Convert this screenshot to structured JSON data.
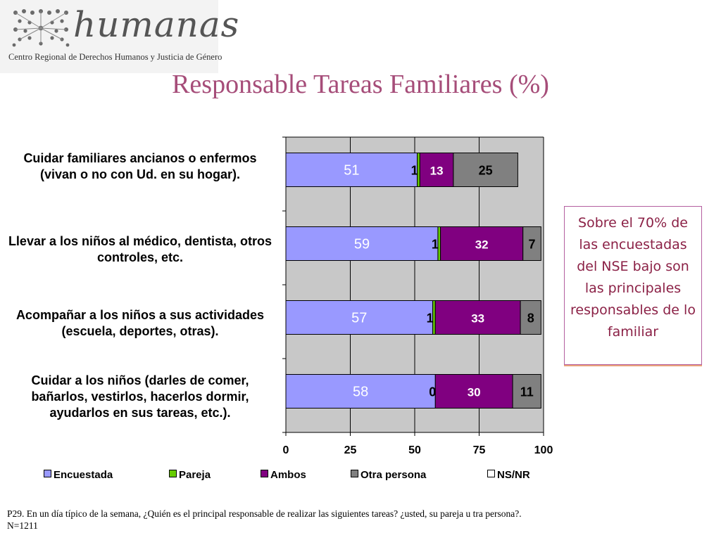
{
  "logo": {
    "wordmark": "humanas",
    "subtitle": "Centro Regional de Derechos Humanos y Justicia de Género"
  },
  "page_title": "Responsable Tareas Familiares (%)",
  "callout": "Sobre el 70% de las encuestadas del NSE bajo son las principales responsables de lo familiar",
  "footnote": {
    "line1": "P29. En un día típico de la semana, ¿Quién es el principal responsable de realizar las siguientes tareas? ¿usted, su pareja u tra persona?.",
    "line2": "N=1211"
  },
  "chart_data": {
    "type": "bar",
    "orientation": "horizontal",
    "stacked": true,
    "categories": [
      "Cuidar familiares ancianos o enfermos (vivan o no con Ud. en su hogar).",
      "Llevar a los niños al médico, dentista, otros controles, etc.",
      "Acompañar a los niños a sus actividades (escuela, deportes, otras).",
      "Cuidar a los niños (darles de comer, bañarlos, vestirlos, hacerlos dormir, ayudarlos en sus tareas, etc.)."
    ],
    "series": [
      {
        "name": "Encuestada",
        "color": "#9999ff",
        "values": [
          51,
          59,
          57,
          58
        ]
      },
      {
        "name": "Pareja",
        "color": "#66cc00",
        "values": [
          1,
          1,
          1,
          0
        ]
      },
      {
        "name": "Ambos",
        "color": "#800080",
        "values": [
          13,
          32,
          33,
          30
        ]
      },
      {
        "name": "Otra persona",
        "color": "#808080",
        "values": [
          25,
          7,
          8,
          11
        ]
      },
      {
        "name": "NS/NR",
        "color": "#ffffff",
        "values": [
          0,
          0,
          0,
          0
        ]
      }
    ],
    "xlim": [
      0,
      100
    ],
    "xticks": [
      0,
      25,
      50,
      75,
      100
    ],
    "grid": true,
    "legend": "bottom"
  }
}
